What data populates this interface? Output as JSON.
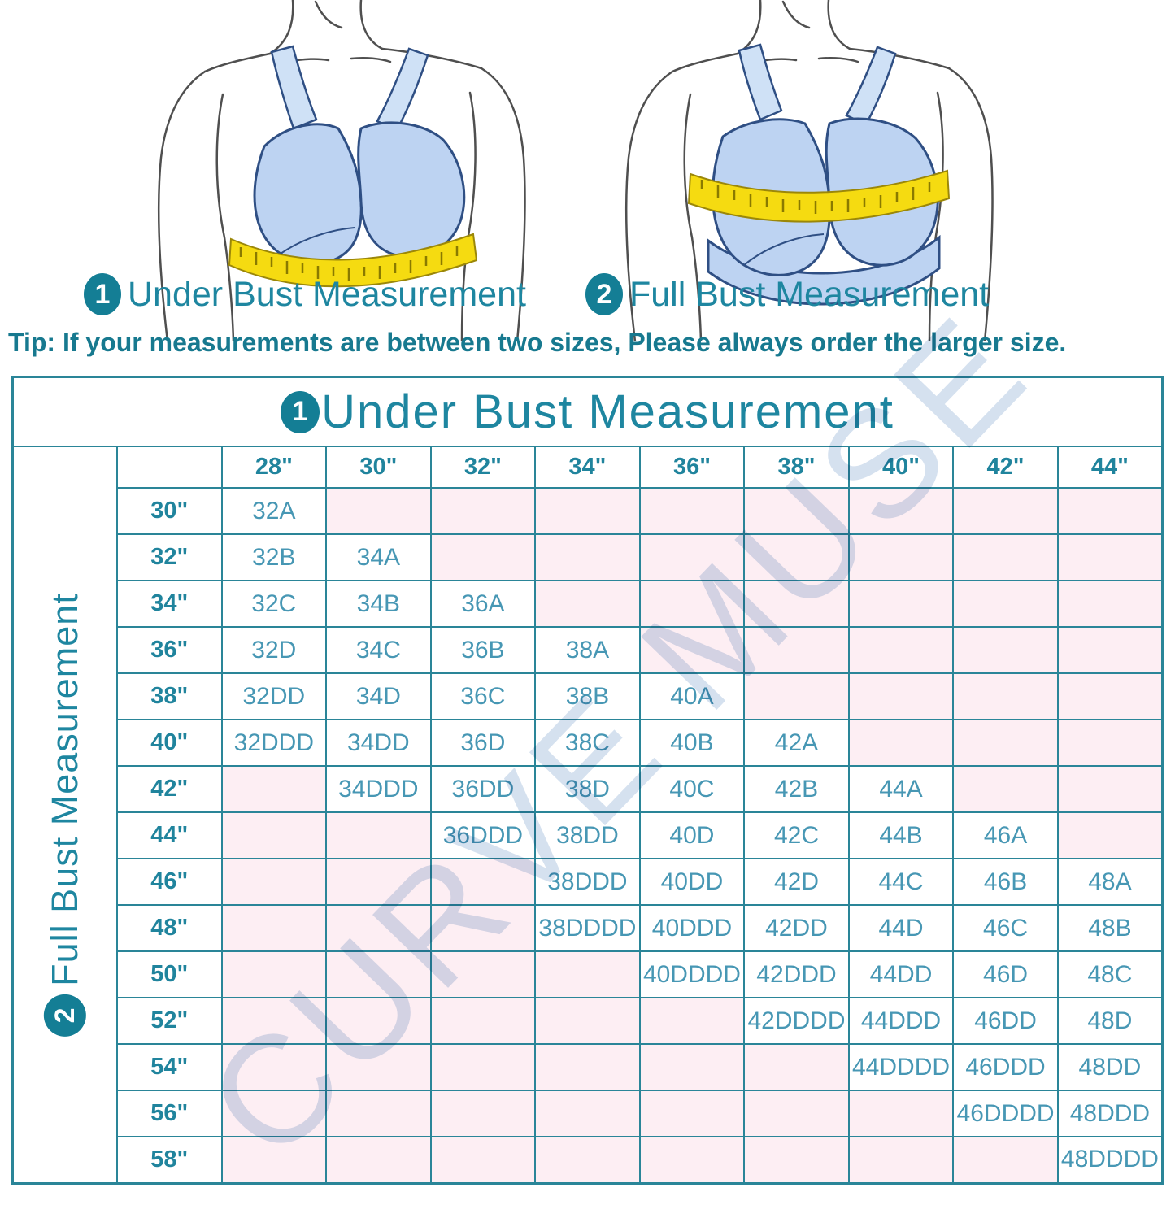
{
  "figures": {
    "left": {
      "badge": "1",
      "label": "Under Bust Measurement"
    },
    "right": {
      "badge": "2",
      "label": "Full Bust Measurement"
    }
  },
  "tip": "Tip: If your measurements are between two sizes, Please always order the larger size.",
  "watermark": "CURVE MUSE",
  "colors": {
    "teal_border": "#2a8598",
    "teal_text": "#1e86a0",
    "cell_text": "#4797b4",
    "empty_cell_pink": "#fdeef3",
    "badge_teal": "#147e95",
    "tape_yellow": "#f5db11",
    "bra_blue": "#bdd3f2",
    "watermark_blue": "#d5e1ef"
  },
  "chart_data": {
    "type": "table",
    "title": "Under Bust Measurement",
    "title_badge": "1",
    "row_axis_label": "Full Bust Measurement",
    "row_axis_badge": "2",
    "columns": [
      "28\"",
      "30\"",
      "32\"",
      "34\"",
      "36\"",
      "38\"",
      "40\"",
      "42\"",
      "44\""
    ],
    "rows": [
      {
        "label": "30\"",
        "cells": [
          "32A",
          "",
          "",
          "",
          "",
          "",
          "",
          "",
          ""
        ]
      },
      {
        "label": "32\"",
        "cells": [
          "32B",
          "34A",
          "",
          "",
          "",
          "",
          "",
          "",
          ""
        ]
      },
      {
        "label": "34\"",
        "cells": [
          "32C",
          "34B",
          "36A",
          "",
          "",
          "",
          "",
          "",
          ""
        ]
      },
      {
        "label": "36\"",
        "cells": [
          "32D",
          "34C",
          "36B",
          "38A",
          "",
          "",
          "",
          "",
          ""
        ]
      },
      {
        "label": "38\"",
        "cells": [
          "32DD",
          "34D",
          "36C",
          "38B",
          "40A",
          "",
          "",
          "",
          ""
        ]
      },
      {
        "label": "40\"",
        "cells": [
          "32DDD",
          "34DD",
          "36D",
          "38C",
          "40B",
          "42A",
          "",
          "",
          ""
        ]
      },
      {
        "label": "42\"",
        "cells": [
          "",
          "34DDD",
          "36DD",
          "38D",
          "40C",
          "42B",
          "44A",
          "",
          ""
        ]
      },
      {
        "label": "44\"",
        "cells": [
          "",
          "",
          "36DDD",
          "38DD",
          "40D",
          "42C",
          "44B",
          "46A",
          ""
        ]
      },
      {
        "label": "46\"",
        "cells": [
          "",
          "",
          "",
          "38DDD",
          "40DD",
          "42D",
          "44C",
          "46B",
          "48A"
        ]
      },
      {
        "label": "48\"",
        "cells": [
          "",
          "",
          "",
          "38DDDD",
          "40DDD",
          "42DD",
          "44D",
          "46C",
          "48B"
        ]
      },
      {
        "label": "50\"",
        "cells": [
          "",
          "",
          "",
          "",
          "40DDDD",
          "42DDD",
          "44DD",
          "46D",
          "48C"
        ]
      },
      {
        "label": "52\"",
        "cells": [
          "",
          "",
          "",
          "",
          "",
          "42DDDD",
          "44DDD",
          "46DD",
          "48D"
        ]
      },
      {
        "label": "54\"",
        "cells": [
          "",
          "",
          "",
          "",
          "",
          "",
          "44DDDD",
          "46DDD",
          "48DD"
        ]
      },
      {
        "label": "56\"",
        "cells": [
          "",
          "",
          "",
          "",
          "",
          "",
          "",
          "46DDDD",
          "48DDD"
        ]
      },
      {
        "label": "58\"",
        "cells": [
          "",
          "",
          "",
          "",
          "",
          "",
          "",
          "",
          "48DDDD"
        ]
      }
    ]
  }
}
